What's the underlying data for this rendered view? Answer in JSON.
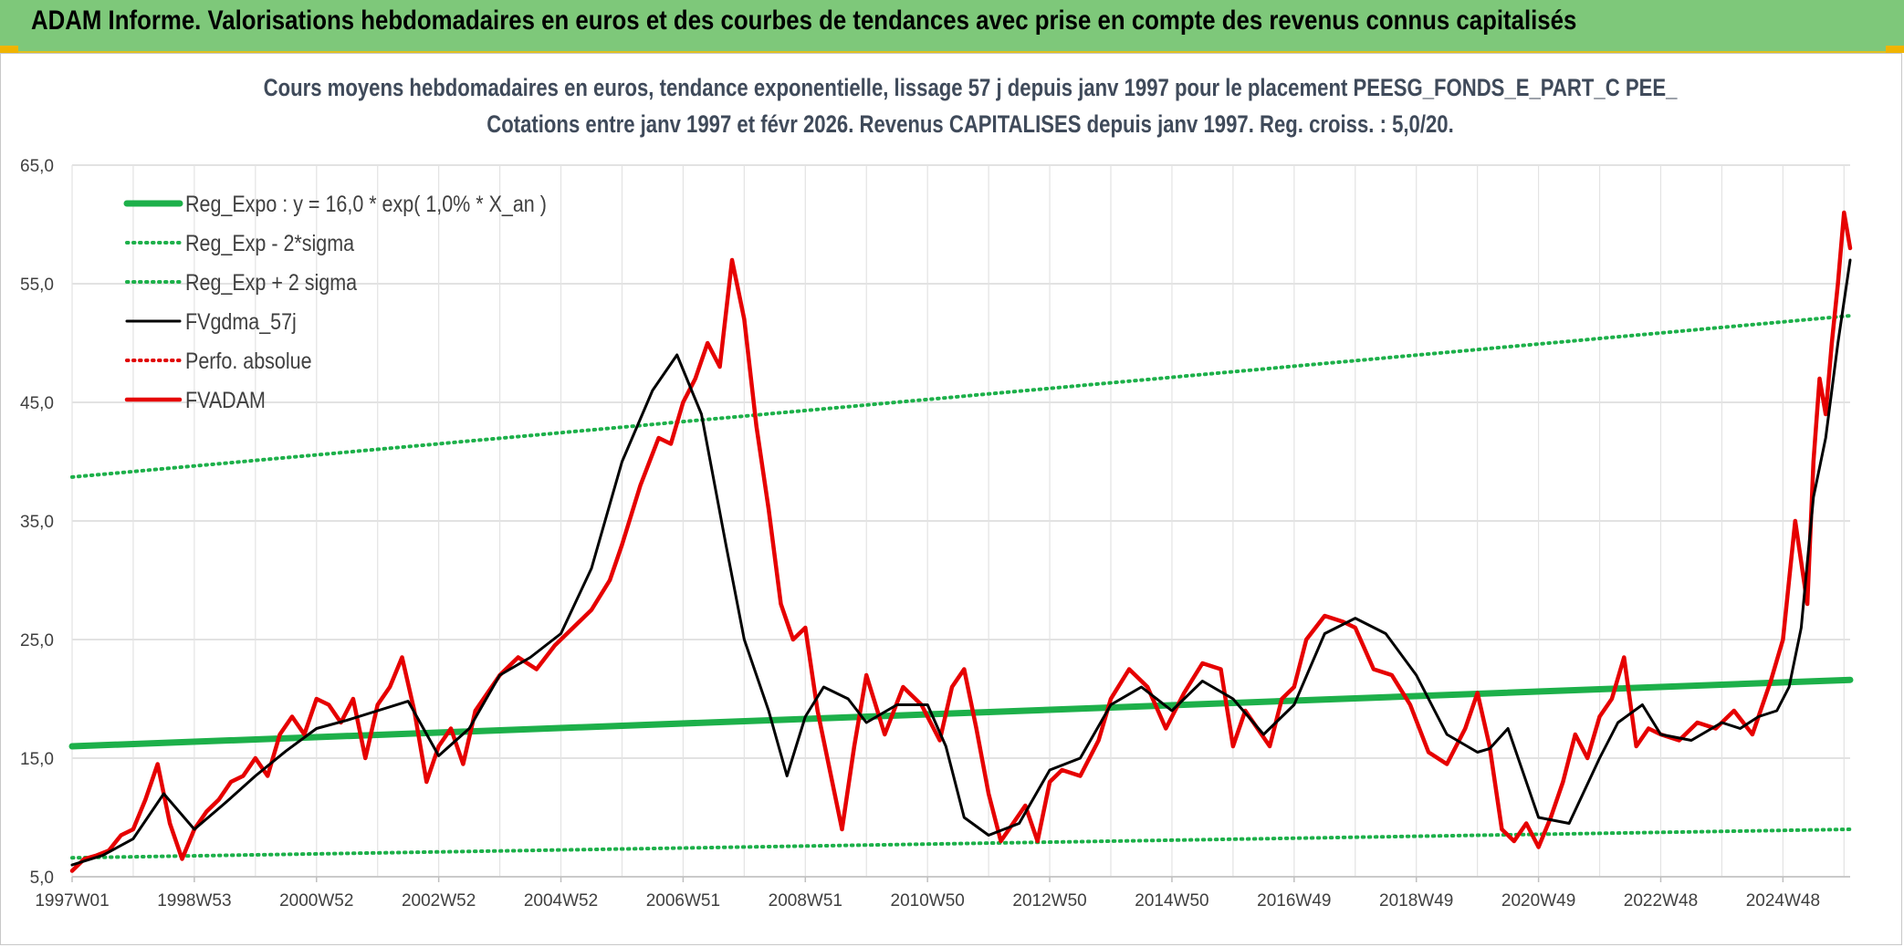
{
  "banner": {
    "title": "ADAM Informe. Valorisations hebdomadaires en euros et des courbes de tendances avec prise en compte des revenus connus capitalisés",
    "background": "#7ec87a"
  },
  "chart_data": {
    "type": "line",
    "title": "Cours moyens hebdomadaires en euros, tendance exponentielle, lissage 57 j depuis janv 1997 pour le placement PEESG_FONDS_E_PART_C PEE_",
    "subtitle": "Cotations entre janv 1997 et févr 2026. Revenus CAPITALISES depuis janv 1997. Reg. croiss. : 5,0/20.",
    "xlabel": "",
    "ylabel": "",
    "ylim": [
      5,
      65
    ],
    "xlim": [
      1997.0,
      2026.1
    ],
    "grid": true,
    "legend_position": "top-left",
    "y_ticks": [
      "5,0",
      "15,0",
      "25,0",
      "35,0",
      "45,0",
      "55,0",
      "65,0"
    ],
    "x_ticks": [
      {
        "label": "1997W01",
        "year": 1997.0
      },
      {
        "label": "1998W53",
        "year": 1999.0
      },
      {
        "label": "2000W52",
        "year": 2001.0
      },
      {
        "label": "2002W52",
        "year": 2003.0
      },
      {
        "label": "2004W52",
        "year": 2005.0
      },
      {
        "label": "2006W51",
        "year": 2007.0
      },
      {
        "label": "2008W51",
        "year": 2009.0
      },
      {
        "label": "2010W50",
        "year": 2011.0
      },
      {
        "label": "2012W50",
        "year": 2013.0
      },
      {
        "label": "2014W50",
        "year": 2015.0
      },
      {
        "label": "2016W49",
        "year": 2017.0
      },
      {
        "label": "2018W49",
        "year": 2019.0
      },
      {
        "label": "2020W49",
        "year": 2021.0
      },
      {
        "label": "2022W48",
        "year": 2023.0
      },
      {
        "label": "2024W48",
        "year": 2025.0
      }
    ],
    "series": [
      {
        "name": "Reg_Expo : y = 16,0 * exp( 1,0% *  X_an )",
        "color": "#1db04a",
        "style": "solid-thick",
        "x": [
          1997.0,
          2026.1
        ],
        "y": [
          16.0,
          21.6
        ]
      },
      {
        "name": "Reg_Exp - 2*sigma",
        "color": "#1db04a",
        "style": "dotted",
        "x": [
          1997.0,
          2026.1
        ],
        "y": [
          6.6,
          9.0
        ]
      },
      {
        "name": "Reg_Exp + 2 sigma",
        "color": "#1db04a",
        "style": "dotted",
        "x": [
          1997.0,
          2026.1
        ],
        "y": [
          38.7,
          52.3
        ]
      },
      {
        "name": "FVgdma_57j",
        "color": "#000000",
        "style": "solid",
        "x": [
          1997.0,
          1997.5,
          1998.0,
          1998.5,
          1999.0,
          1999.5,
          2000.0,
          2000.5,
          2001.0,
          2001.5,
          2002.0,
          2002.5,
          2003.0,
          2003.5,
          2004.0,
          2004.5,
          2005.0,
          2005.5,
          2006.0,
          2006.5,
          2006.9,
          2007.3,
          2007.7,
          2008.0,
          2008.4,
          2008.7,
          2009.0,
          2009.3,
          2009.7,
          2010.0,
          2010.5,
          2011.0,
          2011.3,
          2011.6,
          2012.0,
          2012.5,
          2013.0,
          2013.5,
          2014.0,
          2014.5,
          2015.0,
          2015.5,
          2016.0,
          2016.5,
          2017.0,
          2017.5,
          2018.0,
          2018.5,
          2019.0,
          2019.5,
          2020.0,
          2020.2,
          2020.5,
          2021.0,
          2021.5,
          2022.0,
          2022.3,
          2022.7,
          2023.0,
          2023.5,
          2024.0,
          2024.3,
          2024.6,
          2024.9,
          2025.1,
          2025.3,
          2025.5,
          2025.7,
          2025.9,
          2026.1
        ],
        "y": [
          6.0,
          6.8,
          8.2,
          12.0,
          9.0,
          11.2,
          13.5,
          15.6,
          17.5,
          18.2,
          19.0,
          19.8,
          15.2,
          17.5,
          22.0,
          23.5,
          25.5,
          31.0,
          40.0,
          46.0,
          49.0,
          44.0,
          33.0,
          25.0,
          19.0,
          13.5,
          18.5,
          21.0,
          20.0,
          18.0,
          19.5,
          19.5,
          16.0,
          10.0,
          8.5,
          9.5,
          14.0,
          15.0,
          19.5,
          21.0,
          19.0,
          21.5,
          20.0,
          17.0,
          19.5,
          25.5,
          26.8,
          25.5,
          22.0,
          17.0,
          15.5,
          15.8,
          17.5,
          10.0,
          9.5,
          15.0,
          18.0,
          19.5,
          17.0,
          16.5,
          18.0,
          17.5,
          18.5,
          19.0,
          21.0,
          26.0,
          37.0,
          42.0,
          50.0,
          57.0
        ]
      },
      {
        "name": "Perfo. absolue",
        "color": "#e00000",
        "style": "dotted",
        "x": [],
        "y": []
      },
      {
        "name": "FVADAM",
        "color": "#e60000",
        "style": "solid-thick",
        "x": [
          1997.0,
          1997.2,
          1997.4,
          1997.6,
          1997.8,
          1998.0,
          1998.2,
          1998.4,
          1998.6,
          1998.8,
          1999.0,
          1999.2,
          1999.4,
          1999.6,
          1999.8,
          2000.0,
          2000.2,
          2000.4,
          2000.6,
          2000.8,
          2001.0,
          2001.2,
          2001.4,
          2001.6,
          2001.8,
          2002.0,
          2002.2,
          2002.4,
          2002.6,
          2002.8,
          2003.0,
          2003.2,
          2003.4,
          2003.6,
          2003.8,
          2004.0,
          2004.3,
          2004.6,
          2004.9,
          2005.2,
          2005.5,
          2005.8,
          2006.0,
          2006.3,
          2006.6,
          2006.8,
          2007.0,
          2007.2,
          2007.4,
          2007.6,
          2007.8,
          2008.0,
          2008.2,
          2008.4,
          2008.6,
          2008.8,
          2009.0,
          2009.2,
          2009.4,
          2009.6,
          2009.8,
          2010.0,
          2010.3,
          2010.6,
          2010.9,
          2011.2,
          2011.4,
          2011.6,
          2011.8,
          2012.0,
          2012.2,
          2012.4,
          2012.6,
          2012.8,
          2013.0,
          2013.2,
          2013.5,
          2013.8,
          2014.0,
          2014.3,
          2014.6,
          2014.9,
          2015.2,
          2015.5,
          2015.8,
          2016.0,
          2016.2,
          2016.4,
          2016.6,
          2016.8,
          2017.0,
          2017.2,
          2017.5,
          2017.8,
          2018.0,
          2018.3,
          2018.6,
          2018.9,
          2019.2,
          2019.5,
          2019.8,
          2020.0,
          2020.2,
          2020.4,
          2020.6,
          2020.8,
          2021.0,
          2021.2,
          2021.4,
          2021.6,
          2021.8,
          2022.0,
          2022.2,
          2022.4,
          2022.6,
          2022.8,
          2023.0,
          2023.3,
          2023.6,
          2023.9,
          2024.2,
          2024.5,
          2024.8,
          2025.0,
          2025.2,
          2025.4,
          2025.5,
          2025.6,
          2025.7,
          2025.8,
          2025.9,
          2026.0,
          2026.1
        ],
        "y": [
          5.5,
          6.5,
          6.8,
          7.2,
          8.5,
          9.0,
          11.5,
          14.5,
          9.5,
          6.5,
          9.0,
          10.5,
          11.5,
          13.0,
          13.5,
          15.0,
          13.5,
          17.0,
          18.5,
          17.0,
          20.0,
          19.5,
          18.0,
          20.0,
          15.0,
          19.5,
          21.0,
          23.5,
          19.0,
          13.0,
          16.0,
          17.5,
          14.5,
          19.0,
          20.5,
          22.0,
          23.5,
          22.5,
          24.5,
          26.0,
          27.5,
          30.0,
          33.0,
          38.0,
          42.0,
          41.5,
          45.0,
          47.0,
          50.0,
          48.0,
          57.0,
          52.0,
          43.0,
          36.0,
          28.0,
          25.0,
          26.0,
          19.0,
          14.0,
          9.0,
          16.0,
          22.0,
          17.0,
          21.0,
          19.5,
          16.5,
          21.0,
          22.5,
          17.5,
          12.0,
          8.0,
          9.5,
          11.0,
          8.0,
          13.0,
          14.0,
          13.5,
          16.5,
          20.0,
          22.5,
          21.0,
          17.5,
          20.5,
          23.0,
          22.5,
          16.0,
          19.0,
          17.5,
          16.0,
          20.0,
          21.0,
          25.0,
          27.0,
          26.5,
          26.0,
          22.5,
          22.0,
          19.5,
          15.5,
          14.5,
          17.5,
          20.5,
          16.0,
          9.0,
          8.0,
          9.5,
          7.5,
          10.0,
          13.0,
          17.0,
          15.0,
          18.5,
          20.0,
          23.5,
          16.0,
          17.5,
          17.0,
          16.5,
          18.0,
          17.5,
          19.0,
          17.0,
          21.5,
          25.0,
          35.0,
          28.0,
          40.0,
          47.0,
          44.0,
          50.0,
          55.0,
          61.0,
          58.0
        ]
      }
    ]
  }
}
